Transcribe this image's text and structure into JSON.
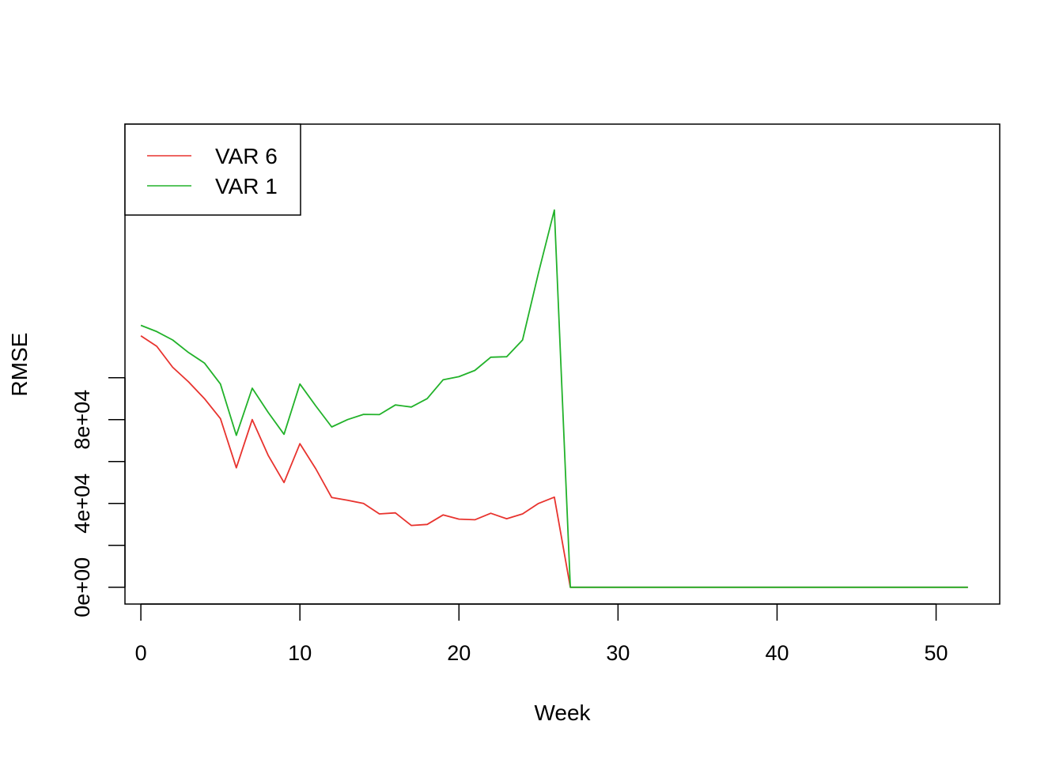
{
  "chart_data": {
    "type": "line",
    "title": "",
    "xlabel": "Week",
    "ylabel": "RMSE",
    "xlim": [
      -1,
      54
    ],
    "ylim": [
      -8000,
      221000
    ],
    "x_ticks": [
      0,
      10,
      20,
      30,
      40,
      50
    ],
    "x_tick_labels": [
      "0",
      "10",
      "20",
      "30",
      "40",
      "50"
    ],
    "y_ticks": [
      0,
      20000,
      40000,
      60000,
      80000,
      100000
    ],
    "y_tick_labels": [
      "0e+00",
      "",
      "4e+04",
      "",
      "8e+04",
      ""
    ],
    "legend_position": "top-left",
    "series": [
      {
        "name": "VAR 6",
        "color": "#e8332e",
        "x": [
          0,
          1,
          2,
          3,
          4,
          5,
          6,
          7,
          8,
          9,
          10,
          11,
          12,
          13,
          14,
          15,
          16,
          17,
          18,
          19,
          20,
          21,
          22,
          23,
          24,
          25,
          26,
          27,
          28,
          29,
          30,
          31,
          32,
          33,
          34,
          35,
          36,
          37,
          38,
          39,
          40,
          41,
          42,
          43,
          44,
          45,
          46,
          47,
          48,
          49,
          50,
          51,
          52
        ],
        "values": [
          120000,
          115000,
          105000,
          98000,
          90000,
          80500,
          57000,
          80000,
          63000,
          50000,
          68500,
          56500,
          42800,
          41500,
          40000,
          35000,
          35500,
          29500,
          30000,
          34500,
          32500,
          32200,
          35300,
          32700,
          35000,
          40000,
          43000,
          0,
          0,
          0,
          0,
          0,
          0,
          0,
          0,
          0,
          0,
          0,
          0,
          0,
          0,
          0,
          0,
          0,
          0,
          0,
          0,
          0,
          0,
          0,
          0,
          0,
          0
        ]
      },
      {
        "name": "VAR 1",
        "color": "#22b22a",
        "x": [
          0,
          1,
          2,
          3,
          4,
          5,
          6,
          7,
          8,
          9,
          10,
          11,
          12,
          13,
          14,
          15,
          16,
          17,
          18,
          19,
          20,
          21,
          22,
          23,
          24,
          25,
          26,
          27,
          28,
          29,
          30,
          31,
          32,
          33,
          34,
          35,
          36,
          37,
          38,
          39,
          40,
          41,
          42,
          43,
          44,
          45,
          46,
          47,
          48,
          49,
          50,
          51,
          52
        ],
        "values": [
          125000,
          122000,
          118000,
          112000,
          107000,
          97000,
          72500,
          95000,
          83500,
          73000,
          97000,
          86500,
          76500,
          80000,
          82500,
          82400,
          87000,
          86000,
          90000,
          99000,
          100500,
          103500,
          109800,
          110000,
          118000,
          150000,
          180000,
          0,
          0,
          0,
          0,
          0,
          0,
          0,
          0,
          0,
          0,
          0,
          0,
          0,
          0,
          0,
          0,
          0,
          0,
          0,
          0,
          0,
          0,
          0,
          0,
          0,
          0
        ]
      }
    ]
  }
}
